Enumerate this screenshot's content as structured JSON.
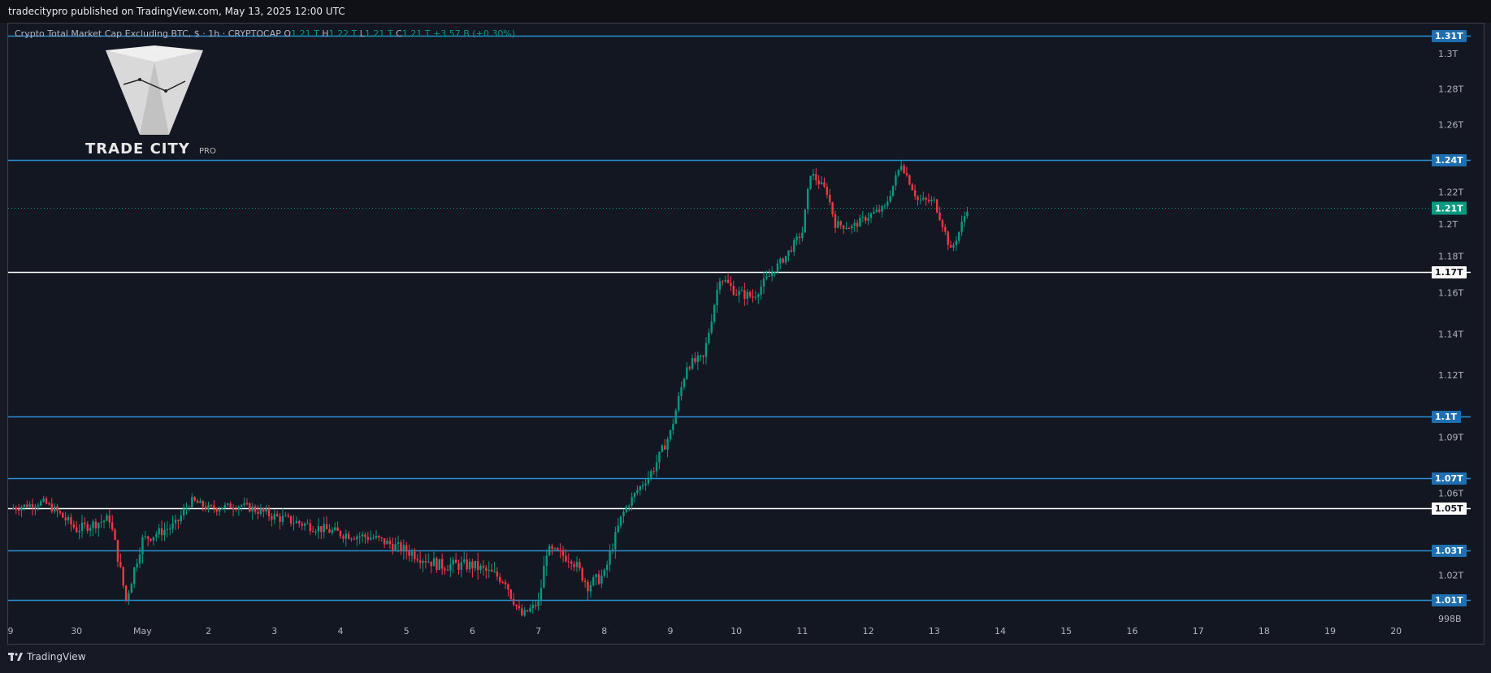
{
  "header": {
    "publisher_line": "tradecitypro published on TradingView.com, May 13, 2025 12:00 UTC"
  },
  "legend": {
    "symbol": "Crypto Total Market Cap Excluding BTC, $ · 1h · CRYPTOCAP",
    "o_label": "O",
    "o_value": "1.21 T",
    "h_label": "H",
    "h_value": "1.22 T",
    "l_label": "L",
    "l_value": "1.21 T",
    "c_label": "C",
    "c_value": "1.21 T",
    "change": "+3.57 B (+0.30%)"
  },
  "logo": {
    "brand": "TRADE CITY",
    "suffix": "PRO"
  },
  "footer": {
    "brand": "TradingView"
  },
  "colors": {
    "up": "#089981",
    "down": "#f23645",
    "level": "#2a8fd4",
    "key_level": "#ffffff",
    "bg": "#131722",
    "last_price": "#089981"
  },
  "chart_data": {
    "type": "candlestick",
    "title": "Crypto Total Market Cap Excluding BTC, $ · 1h · CRYPTOCAP",
    "y_unit": "T",
    "ylim": [
      0.985,
      1.32
    ],
    "x_ticks": [
      "9",
      "30",
      "May",
      "2",
      "3",
      "4",
      "5",
      "6",
      "7",
      "8",
      "9",
      "10",
      "11",
      "12",
      "13",
      "14",
      "15",
      "16",
      "17",
      "18",
      "19",
      "20"
    ],
    "y_ticks": [
      "1.3T",
      "1.28T",
      "1.26T",
      "1.24T",
      "1.22T",
      "1.2T",
      "1.18T",
      "1.16T",
      "1.14T",
      "1.12T",
      "1.1T",
      "1.09T",
      "1.07T",
      "1.06T",
      "1.05T",
      "1.03T",
      "1.02T",
      "1.01T",
      "998B"
    ],
    "y_tick_values": [
      1.3,
      1.28,
      1.26,
      1.24,
      1.22,
      1.2,
      1.18,
      1.16,
      1.14,
      1.12,
      1.1,
      1.09,
      1.07,
      1.06,
      1.05,
      1.03,
      1.02,
      1.01,
      0.998
    ],
    "horizontal_levels": [
      {
        "value": 1.31,
        "label": "1.31T",
        "style": "blue"
      },
      {
        "value": 1.24,
        "label": "1.24T",
        "style": "blue"
      },
      {
        "value": 1.17,
        "label": "1.17T",
        "style": "white"
      },
      {
        "value": 1.1,
        "label": "1.1T",
        "style": "blue"
      },
      {
        "value": 1.07,
        "label": "1.07T",
        "style": "blue"
      },
      {
        "value": 1.05,
        "label": "1.05T",
        "style": "white"
      },
      {
        "value": 1.03,
        "label": "1.03T",
        "style": "blue"
      },
      {
        "value": 1.01,
        "label": "1.01T",
        "style": "blue"
      }
    ],
    "last_price": {
      "value": 1.21,
      "label": "1.21T"
    },
    "price_path": [
      {
        "x": "Apr 29",
        "price": 1.05
      },
      {
        "x": "Apr 29 12:00",
        "price": 1.054
      },
      {
        "x": "Apr 30",
        "price": 1.04
      },
      {
        "x": "Apr 30 12:00",
        "price": 1.045
      },
      {
        "x": "Apr 30 18:00",
        "price": 1.01
      },
      {
        "x": "May 1",
        "price": 1.035
      },
      {
        "x": "May 1 12:00",
        "price": 1.042
      },
      {
        "x": "May 1 18:00",
        "price": 1.055
      },
      {
        "x": "May 2",
        "price": 1.05
      },
      {
        "x": "May 2 12:00",
        "price": 1.052
      },
      {
        "x": "May 3",
        "price": 1.046
      },
      {
        "x": "May 4",
        "price": 1.038
      },
      {
        "x": "May 4 12:00",
        "price": 1.036
      },
      {
        "x": "May 5",
        "price": 1.03
      },
      {
        "x": "May 5 12:00",
        "price": 1.024
      },
      {
        "x": "May 6",
        "price": 1.024
      },
      {
        "x": "May 6 12:00",
        "price": 1.018
      },
      {
        "x": "May 6 18:00",
        "price": 1.0
      },
      {
        "x": "May 7",
        "price": 1.008
      },
      {
        "x": "May 7 03:00",
        "price": 1.03
      },
      {
        "x": "May 7 12:00",
        "price": 1.027
      },
      {
        "x": "May 7 18:00",
        "price": 1.016
      },
      {
        "x": "May 8",
        "price": 1.02
      },
      {
        "x": "May 8 06:00",
        "price": 1.045
      },
      {
        "x": "May 8 12:00",
        "price": 1.062
      },
      {
        "x": "May 8 18:00",
        "price": 1.075
      },
      {
        "x": "May 9",
        "price": 1.092
      },
      {
        "x": "May 9 06:00",
        "price": 1.125
      },
      {
        "x": "May 9 12:00",
        "price": 1.128
      },
      {
        "x": "May 9 18:00",
        "price": 1.168
      },
      {
        "x": "May 10",
        "price": 1.16
      },
      {
        "x": "May 10 06:00",
        "price": 1.158
      },
      {
        "x": "May 10 12:00",
        "price": 1.168
      },
      {
        "x": "May 10 18:00",
        "price": 1.18
      },
      {
        "x": "May 11",
        "price": 1.195
      },
      {
        "x": "May 11 03:00",
        "price": 1.232
      },
      {
        "x": "May 11 09:00",
        "price": 1.22
      },
      {
        "x": "May 11 12:00",
        "price": 1.2
      },
      {
        "x": "May 11 18:00",
        "price": 1.198
      },
      {
        "x": "May 12",
        "price": 1.205
      },
      {
        "x": "May 12 06:00",
        "price": 1.21
      },
      {
        "x": "May 12 12:00",
        "price": 1.238
      },
      {
        "x": "May 12 18:00",
        "price": 1.215
      },
      {
        "x": "May 13",
        "price": 1.214
      },
      {
        "x": "May 13 03:00",
        "price": 1.2
      },
      {
        "x": "May 13 06:00",
        "price": 1.183
      },
      {
        "x": "May 13 09:00",
        "price": 1.195
      },
      {
        "x": "May 13 12:00",
        "price": 1.21
      }
    ]
  }
}
